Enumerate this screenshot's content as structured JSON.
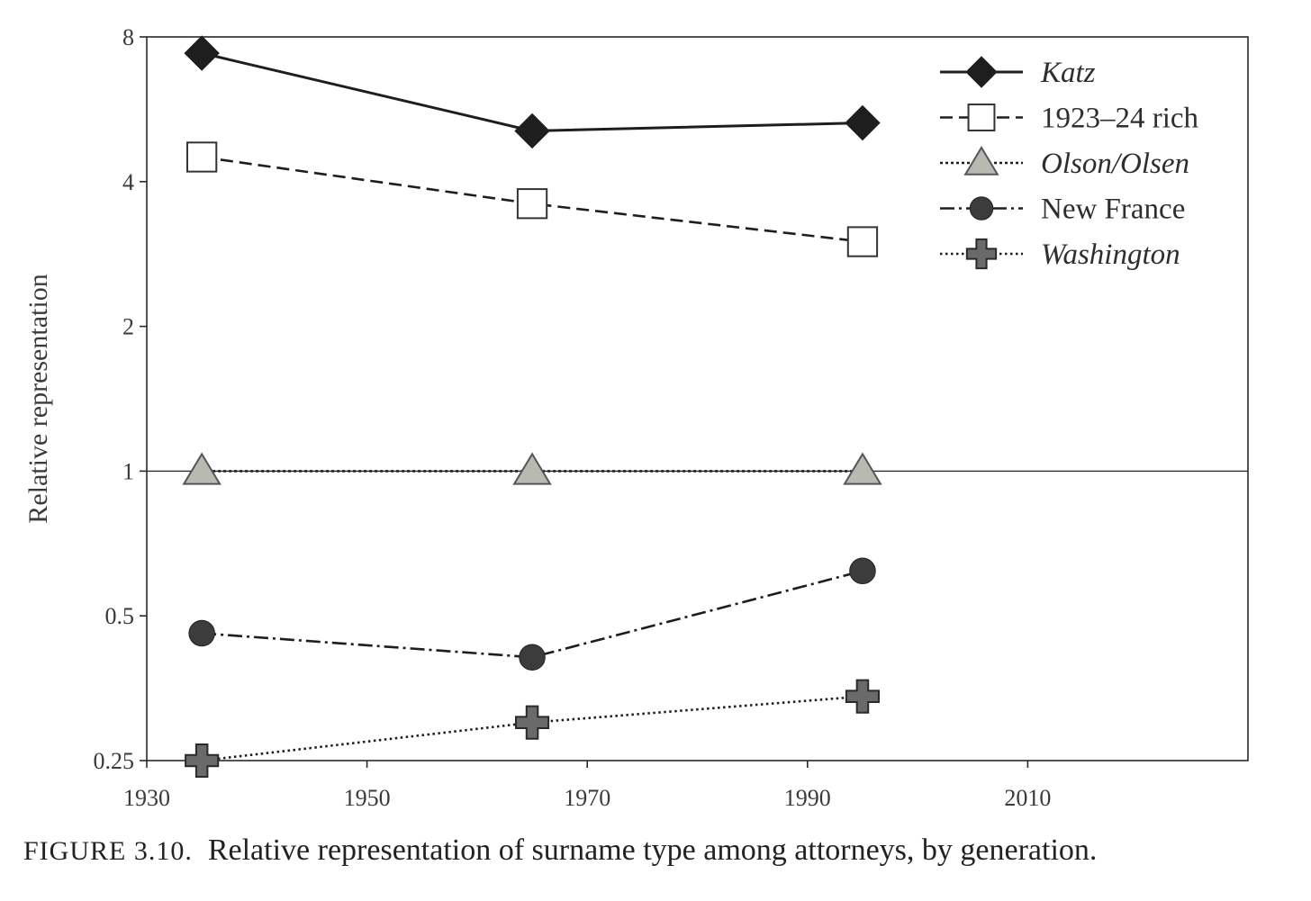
{
  "chart_data": {
    "type": "line",
    "ylabel": "Relative representation",
    "yscale": "log2",
    "ylim": [
      0.25,
      8
    ],
    "yticks": [
      {
        "value": 0.25,
        "label": "0.25"
      },
      {
        "value": 0.5,
        "label": "0.5"
      },
      {
        "value": 1,
        "label": "1"
      },
      {
        "value": 2,
        "label": "2"
      },
      {
        "value": 4,
        "label": "4"
      },
      {
        "value": 8,
        "label": "8"
      }
    ],
    "xlim": [
      1930,
      2030
    ],
    "xticks": [
      {
        "value": 1930,
        "label": "1930"
      },
      {
        "value": 1950,
        "label": "1950"
      },
      {
        "value": 1970,
        "label": "1970"
      },
      {
        "value": 1990,
        "label": "1990"
      },
      {
        "value": 2010,
        "label": "2010"
      }
    ],
    "reference_line": 1,
    "legend_position": "top-right",
    "series": [
      {
        "name": "Katz",
        "italic": true,
        "marker": "diamond",
        "dash": "solid",
        "color": "#1e1e1e",
        "x": [
          1935,
          1965,
          1995
        ],
        "y": [
          7.4,
          5.1,
          5.3
        ]
      },
      {
        "name": "1923–24 rich",
        "italic": false,
        "marker": "square-open",
        "dash": "dashed",
        "color": "#1e1e1e",
        "x": [
          1935,
          1965,
          1995
        ],
        "y": [
          4.5,
          3.6,
          3.0
        ]
      },
      {
        "name": "Olson/Olsen",
        "italic": true,
        "marker": "triangle",
        "dash": "dotted",
        "color": "#1e1e1e",
        "x": [
          1935,
          1965,
          1995
        ],
        "y": [
          1.0,
          1.0,
          1.0
        ]
      },
      {
        "name": "New France",
        "italic": false,
        "marker": "circle",
        "dash": "dashdot",
        "color": "#1e1e1e",
        "x": [
          1935,
          1965,
          1995
        ],
        "y": [
          0.46,
          0.41,
          0.62
        ]
      },
      {
        "name": "Washington",
        "italic": true,
        "marker": "cross",
        "dash": "fine-dotted",
        "color": "#1e1e1e",
        "x": [
          1935,
          1965,
          1995
        ],
        "y": [
          0.25,
          0.3,
          0.34
        ]
      }
    ]
  },
  "caption": {
    "label": "FIGURE 3.10.",
    "text": "Relative representation of surname type among attorneys, by generation."
  },
  "colors": {
    "ink": "#1e1e1e",
    "triangle_fill": "#b9b9b1",
    "circle_fill": "#3c3c3c",
    "cross_fill": "#6a6a6a"
  }
}
